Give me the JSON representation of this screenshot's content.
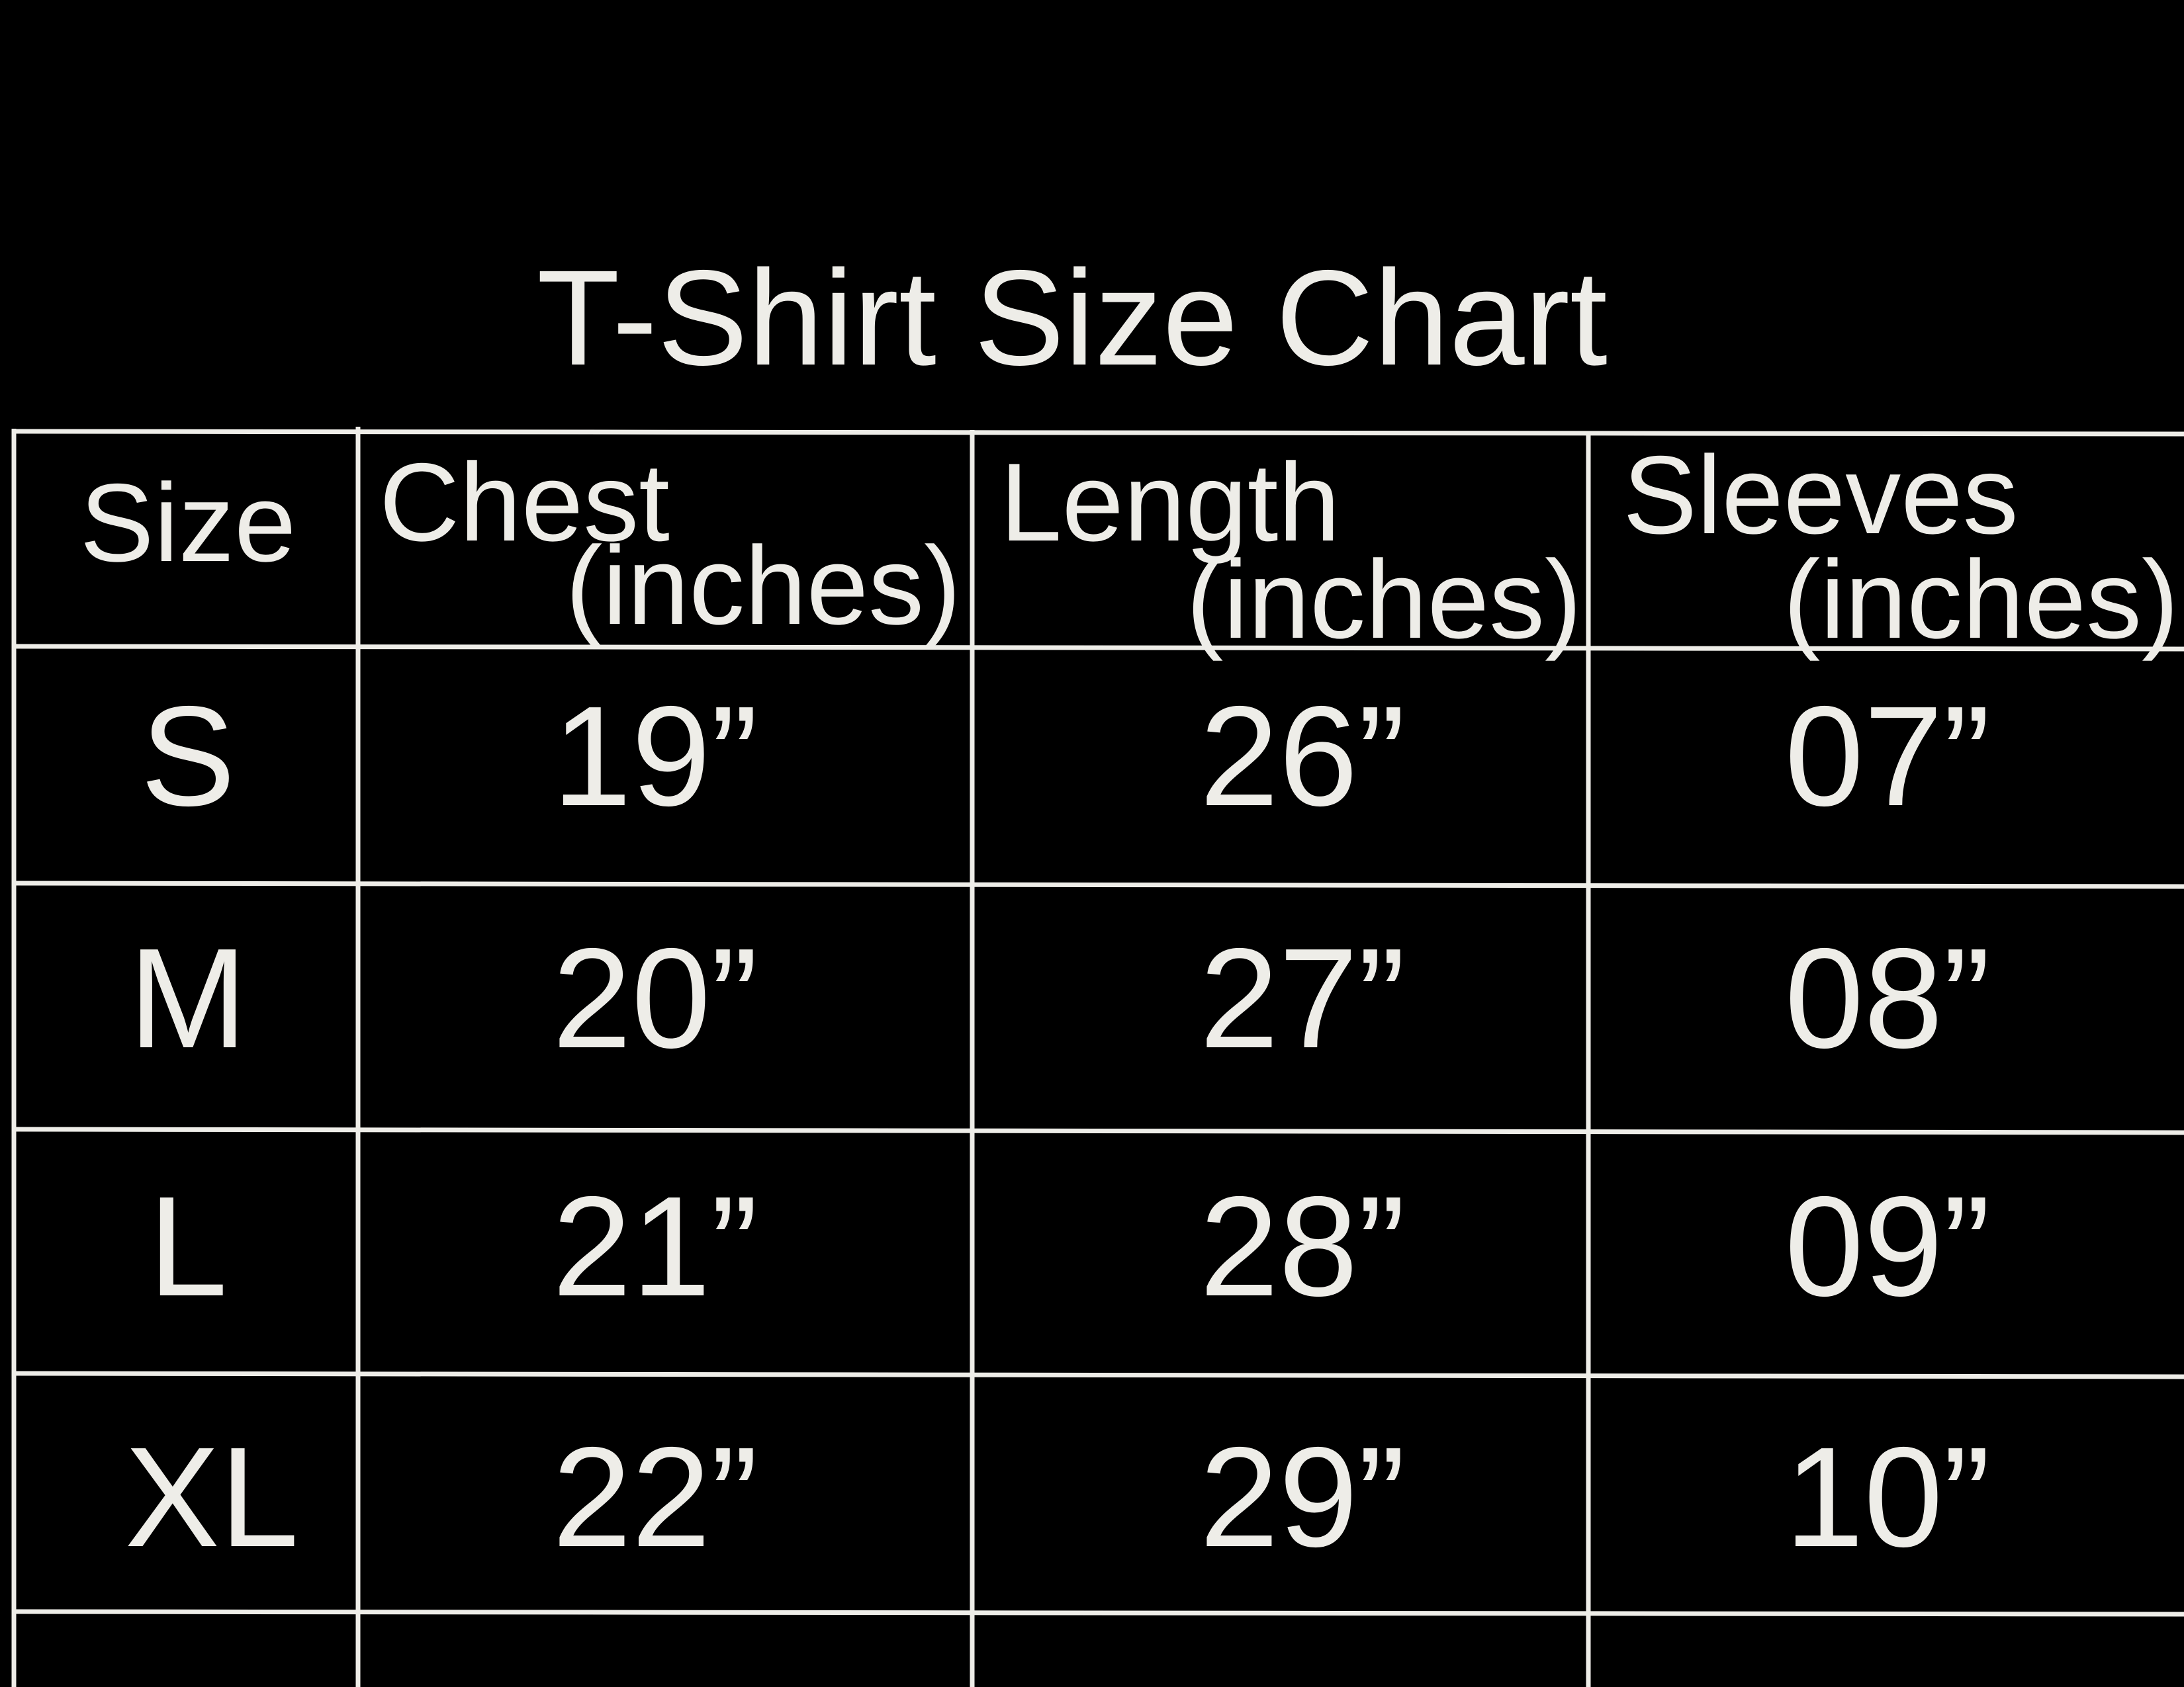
{
  "title": "T-Shirt Size Chart",
  "colors": {
    "background": "#000000",
    "foreground": "#eeede8"
  },
  "headers": [
    {
      "line1": "Size"
    },
    {
      "line1": "Chest",
      "line2": "(inches)"
    },
    {
      "line1": "Length",
      "line2": "(inches)"
    },
    {
      "line1": "Sleeves",
      "line2": "(inches)"
    }
  ],
  "rows": [
    [
      "S",
      "19”",
      "26”",
      "07”"
    ],
    [
      "M",
      "20”",
      "27”",
      "08”"
    ],
    [
      "L",
      "21”",
      "28”",
      "09”"
    ],
    [
      "XL",
      "22”",
      "29”",
      "10”"
    ]
  ]
}
